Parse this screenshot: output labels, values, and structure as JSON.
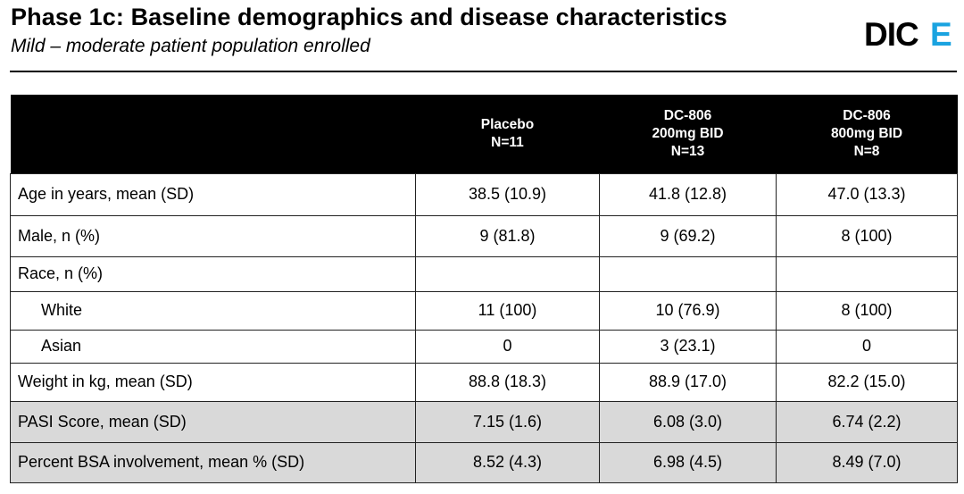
{
  "header": {
    "title": "Phase 1c: Baseline demographics and disease characteristics",
    "subtitle": "Mild – moderate patient population enrolled",
    "logo_text": "DICE",
    "logo_accent_color": "#1aa3e0"
  },
  "table": {
    "columns": [
      {
        "lines": [
          "Placebo",
          "N=11"
        ]
      },
      {
        "lines": [
          "DC-806",
          "200mg BID",
          "N=13"
        ]
      },
      {
        "lines": [
          "DC-806",
          "800mg BID",
          "N=8"
        ]
      }
    ],
    "rows": [
      {
        "label": "Age in years, mean (SD)",
        "values": [
          "38.5 (10.9)",
          "41.8 (12.8)",
          "47.0 (13.3)"
        ],
        "indent": false,
        "shaded": false
      },
      {
        "label": "Male, n (%)",
        "values": [
          "9 (81.8)",
          "9 (69.2)",
          "8 (100)"
        ],
        "indent": false,
        "shaded": false
      },
      {
        "label": "Race, n (%)",
        "values": [
          "",
          "",
          ""
        ],
        "indent": false,
        "shaded": false
      },
      {
        "label": "White",
        "values": [
          "11 (100)",
          "10 (76.9)",
          "8 (100)"
        ],
        "indent": true,
        "shaded": false
      },
      {
        "label": "Asian",
        "values": [
          "0",
          "3 (23.1)",
          "0"
        ],
        "indent": true,
        "shaded": false
      },
      {
        "label": "Weight in kg, mean (SD)",
        "values": [
          "88.8 (18.3)",
          "88.9 (17.0)",
          "82.2 (15.0)"
        ],
        "indent": false,
        "shaded": false
      },
      {
        "label": "PASI Score, mean (SD)",
        "values": [
          "7.15 (1.6)",
          "6.08 (3.0)",
          "6.74 (2.2)"
        ],
        "indent": false,
        "shaded": true
      },
      {
        "label": "Percent BSA involvement, mean % (SD)",
        "values": [
          "8.52 (4.3)",
          "6.98 (4.5)",
          "8.49 (7.0)"
        ],
        "indent": false,
        "shaded": true
      }
    ]
  }
}
